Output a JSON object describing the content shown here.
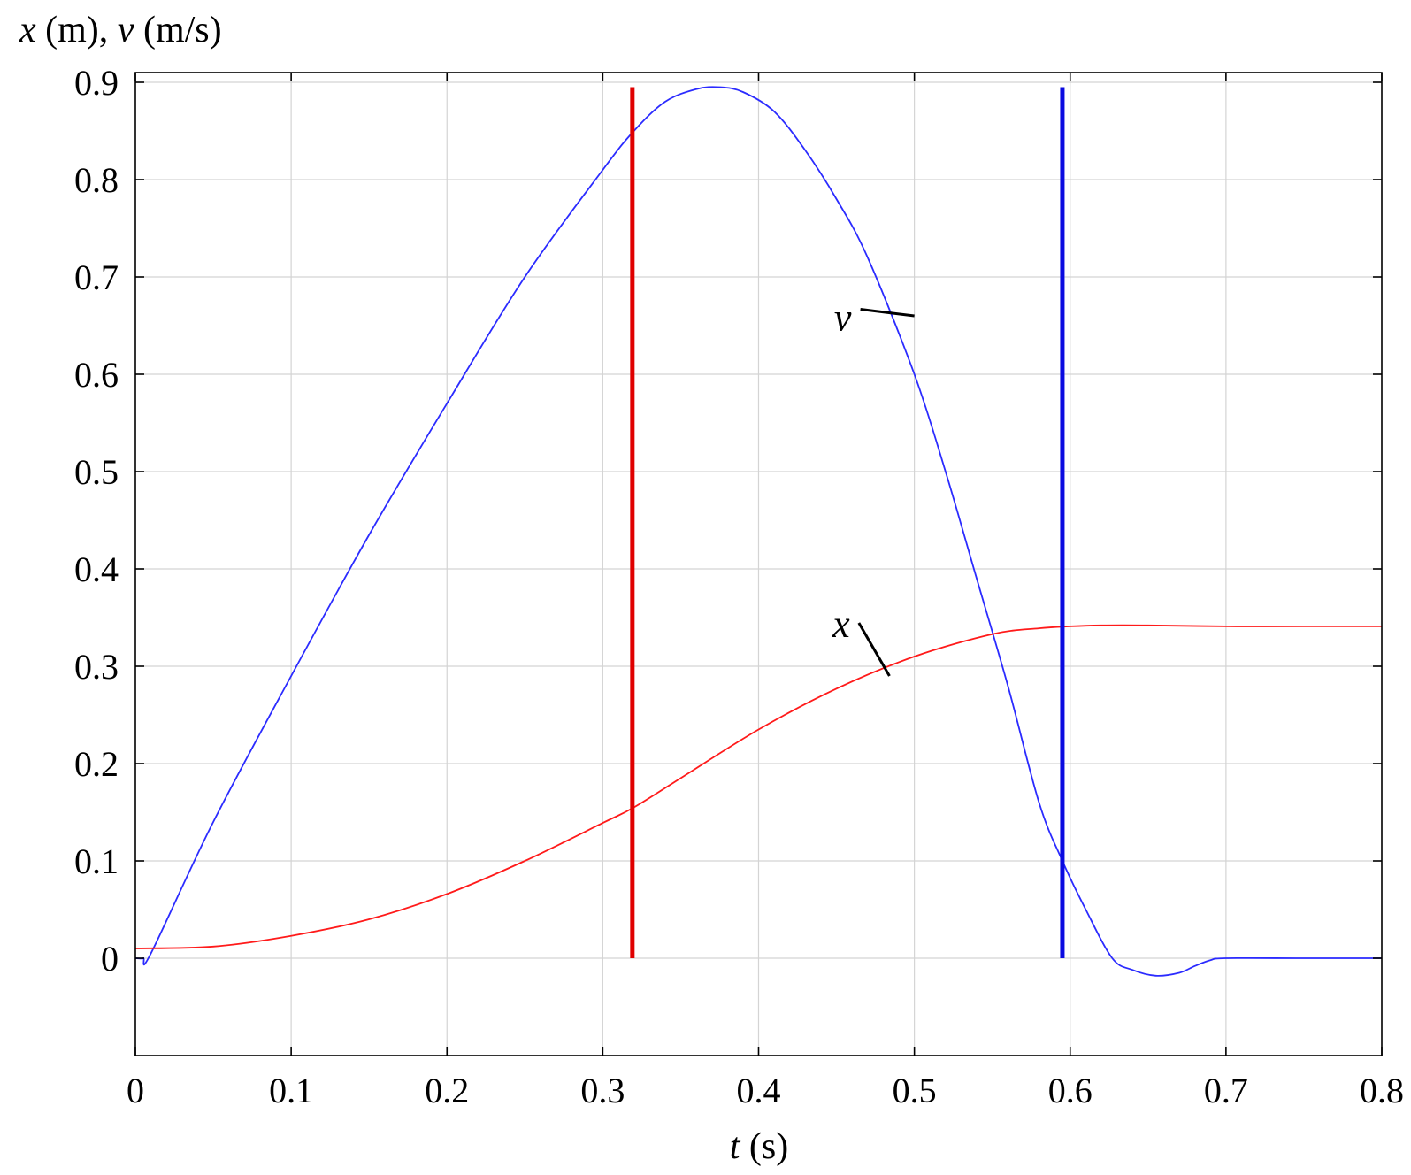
{
  "chart_data": {
    "type": "line",
    "ylabel_parts": [
      {
        "text": "x",
        "italic": true
      },
      {
        "text": " (m),  ",
        "italic": false
      },
      {
        "text": "v",
        "italic": true
      },
      {
        "text": " (m/s)",
        "italic": false
      }
    ],
    "xlabel_parts": [
      {
        "text": "t",
        "italic": true
      },
      {
        "text": " (s)",
        "italic": false
      }
    ],
    "xlim": [
      0,
      0.8
    ],
    "ylim": [
      -0.1,
      0.92
    ],
    "xticks": [
      0,
      0.1,
      0.2,
      0.3,
      0.4,
      0.5,
      0.6,
      0.7,
      0.8
    ],
    "xtick_labels": [
      "0",
      "0.1",
      "0.2",
      "0.3",
      "0.4",
      "0.5",
      "0.6",
      "0.7",
      "0.8"
    ],
    "yticks": [
      0,
      0.1,
      0.2,
      0.3,
      0.4,
      0.5,
      0.6,
      0.7,
      0.8,
      0.9
    ],
    "ytick_labels": [
      "0",
      "0.1",
      "0.2",
      "0.3",
      "0.4",
      "0.5",
      "0.6",
      "0.7",
      "0.8",
      "0.9"
    ],
    "grid": true,
    "series": [
      {
        "name": "v",
        "color": "#2b2bff",
        "x": [
          0,
          0.005,
          0.01,
          0.05,
          0.1,
          0.15,
          0.2,
          0.25,
          0.3,
          0.32,
          0.34,
          0.36,
          0.375,
          0.39,
          0.41,
          0.43,
          0.45,
          0.47,
          0.5,
          0.52,
          0.54,
          0.56,
          0.58,
          0.595,
          0.61,
          0.627,
          0.64,
          0.655,
          0.67,
          0.68,
          0.69,
          0.7,
          0.75,
          0.8
        ],
        "values": [
          0,
          0,
          0.005,
          0.14,
          0.29,
          0.435,
          0.57,
          0.7,
          0.81,
          0.85,
          0.88,
          0.893,
          0.895,
          0.89,
          0.87,
          0.83,
          0.78,
          0.72,
          0.6,
          0.5,
          0.39,
          0.28,
          0.16,
          0.1,
          0.05,
          0.0,
          -0.012,
          -0.018,
          -0.015,
          -0.008,
          -0.002,
          0,
          0,
          0
        ]
      },
      {
        "name": "x",
        "color": "#ff1a1a",
        "x": [
          0,
          0.05,
          0.1,
          0.15,
          0.2,
          0.25,
          0.3,
          0.32,
          0.35,
          0.4,
          0.45,
          0.5,
          0.55,
          0.58,
          0.6,
          0.62,
          0.65,
          0.7,
          0.75,
          0.8
        ],
        "values": [
          0.01,
          0.012,
          0.023,
          0.04,
          0.066,
          0.1,
          0.139,
          0.155,
          0.185,
          0.235,
          0.277,
          0.31,
          0.333,
          0.339,
          0.341,
          0.342,
          0.342,
          0.341,
          0.341,
          0.341
        ]
      }
    ],
    "markers": [
      {
        "color": "#e00000",
        "x": 0.319,
        "y_range": [
          0,
          0.895
        ]
      },
      {
        "color": "#0b0be0",
        "x": 0.595,
        "y_range": [
          0,
          0.895
        ]
      }
    ],
    "annotations": [
      {
        "text": "v",
        "text_at": [
          0.454,
          0.645
        ],
        "point": [
          0.5,
          0.66
        ]
      },
      {
        "text": "x",
        "text_at": [
          0.453,
          0.33
        ],
        "point": [
          0.484,
          0.29
        ]
      }
    ]
  }
}
